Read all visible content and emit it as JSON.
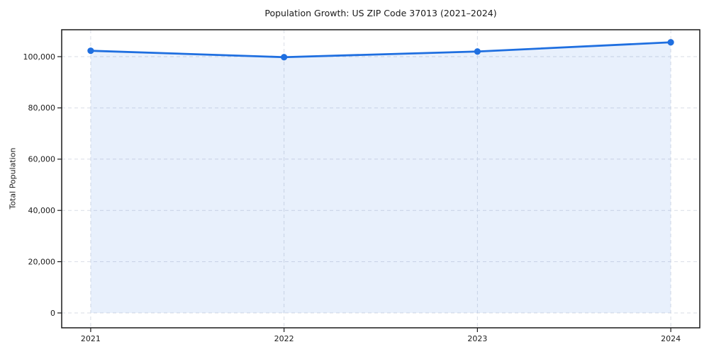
{
  "page": {
    "title": "Population Growth: US ZIP Code 37013 (2021–2024)"
  },
  "chart_data": {
    "type": "line",
    "title": "Population Growth: US ZIP Code 37013 (2021–2024)",
    "xlabel": "",
    "ylabel": "Total Population",
    "categories": [
      2021,
      2022,
      2023,
      2024
    ],
    "series": [
      {
        "name": "Total Population",
        "values": [
          102300,
          99800,
          102000,
          105600
        ]
      }
    ],
    "area_fill": true,
    "area_baseline": 0,
    "markers": "circle",
    "xlim": [
      2020.85,
      2024.15
    ],
    "ylim": [
      -5800,
      110500
    ],
    "xticks": [
      {
        "value": 2021,
        "label": "2021"
      },
      {
        "value": 2022,
        "label": "2022"
      },
      {
        "value": 2023,
        "label": "2023"
      },
      {
        "value": 2024,
        "label": "2024"
      }
    ],
    "yticks": [
      {
        "value": 0,
        "label": "0"
      },
      {
        "value": 20000,
        "label": "20,000"
      },
      {
        "value": 40000,
        "label": "40,000"
      },
      {
        "value": 60000,
        "label": "60,000"
      },
      {
        "value": 80000,
        "label": "80,000"
      },
      {
        "value": 100000,
        "label": "100,000"
      }
    ],
    "grid": "dashed-both",
    "legend": "none",
    "colors": {
      "line": "#1f6fe0",
      "marker": "#1f6fe0",
      "fill": "rgba(31,111,224,0.10)",
      "grid": "#d9dde6",
      "axis": "#1a1a1a",
      "text": "#1a1a1a",
      "background": "#ffffff"
    }
  }
}
